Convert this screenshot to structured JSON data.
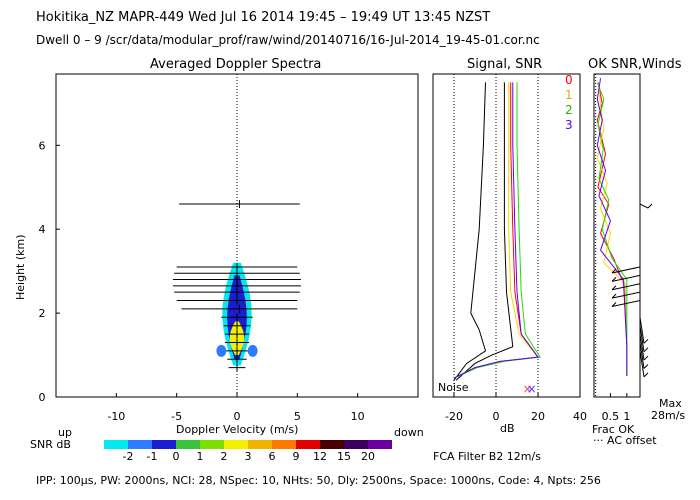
{
  "header": {
    "line1": "Hokitika_NZ  MAPR-449  Wed Jul 16 2014 19:45 – 19:49 UT 13:45 NZST",
    "line2": "Dwell  0 – 9   /scr/data/modular_prof/raw/wind/20140716/16-Jul-2014_19-45-01.cor.nc"
  },
  "panel_titles": {
    "spectra": "Averaged Doppler Spectra",
    "signal": "Signal, SNR",
    "ok": "OK SNR,Winds"
  },
  "labels": {
    "up": "up",
    "down": "down",
    "snr_db": "SNR dB",
    "noise": "Noise",
    "fca_filter": "FCA Filter B2 12m/s",
    "frac_ok": "Frac OK",
    "ac_offset": "··· AC offset",
    "max": "Max",
    "max_val": "28m/s",
    "footer": "IPP: 100µs,  PW: 2000ns,  NCI:  28,  NSpec: 10, NHts: 50,  Dly: 2500ns,  Space: 1000ns,  Code: 4,  Npts: 256"
  },
  "legend_ok": {
    "entries": [
      {
        "label": "0",
        "color": "#ff0000"
      },
      {
        "label": "1",
        "color": "#ffd400"
      },
      {
        "label": "2",
        "color": "#22dd00"
      },
      {
        "label": "3",
        "color": "#5a00ff"
      }
    ]
  },
  "colorbar": {
    "labels": [
      "-2",
      "-1",
      "0",
      "1",
      "2",
      "3",
      "6",
      "9",
      "12",
      "15",
      "20"
    ],
    "colors": [
      "#00e8f0",
      "#2f7bff",
      "#1c1cd0",
      "#3cc23c",
      "#7ee000",
      "#f0f000",
      "#f0b400",
      "#ff7a00",
      "#e00000",
      "#4a0000",
      "#3a0060",
      "#6a00a0"
    ]
  },
  "chart_data": [
    {
      "type": "heatmap",
      "title": "Averaged Doppler Spectra",
      "xlabel": "Doppler Velocity (m/s)",
      "ylabel": "Height (km)",
      "xlim": [
        -15,
        15
      ],
      "ylim": [
        0,
        7.7
      ],
      "xticks": [
        -10,
        -5,
        0,
        5,
        10
      ],
      "yticks": [
        0,
        2,
        4,
        6
      ],
      "moment_error_bars": [
        {
          "height": 0.7,
          "v": 0.0,
          "half_width": 0.7
        },
        {
          "height": 0.9,
          "v": 0.0,
          "half_width": 0.8
        },
        {
          "height": 1.1,
          "v": 0.0,
          "half_width": 0.9
        },
        {
          "height": 1.3,
          "v": 0.0,
          "half_width": 1.0
        },
        {
          "height": 1.5,
          "v": 0.0,
          "half_width": 1.0
        },
        {
          "height": 1.7,
          "v": 0.0,
          "half_width": 1.1
        },
        {
          "height": 1.9,
          "v": 0.0,
          "half_width": 1.3
        },
        {
          "height": 2.1,
          "v": 0.2,
          "half_width": 4.8
        },
        {
          "height": 2.3,
          "v": 0.0,
          "half_width": 5.0
        },
        {
          "height": 2.5,
          "v": 0.0,
          "half_width": 5.2
        },
        {
          "height": 2.65,
          "v": 0.0,
          "half_width": 5.3
        },
        {
          "height": 2.8,
          "v": 0.0,
          "half_width": 5.3
        },
        {
          "height": 2.95,
          "v": 0.0,
          "half_width": 5.2
        },
        {
          "height": 3.1,
          "v": 0.0,
          "half_width": 5.0
        },
        {
          "height": 4.6,
          "v": 0.2,
          "half_width": 5.0
        }
      ],
      "snr_contours": [
        {
          "snr": -2,
          "core_v": 0.0,
          "h0": 0.75,
          "h1": 3.2,
          "max_half_width": 0.9
        },
        {
          "snr": 0,
          "core_v": 0.0,
          "h0": 0.9,
          "h1": 2.9,
          "max_half_width": 0.6
        },
        {
          "snr": 3,
          "core_v": 0.0,
          "h0": 1.0,
          "h1": 1.8,
          "max_half_width": 0.45
        }
      ]
    },
    {
      "type": "line",
      "title": "Signal, SNR",
      "xlabel": "dB",
      "xlim": [
        -30,
        40
      ],
      "xticks": [
        -20,
        0,
        20,
        40
      ],
      "ylim": [
        0,
        7.7
      ],
      "series": [
        {
          "color": "#000000",
          "points": [
            [
              -20,
              0.4
            ],
            [
              -14,
              0.8
            ],
            [
              -5,
              1.1
            ],
            [
              -8,
              1.6
            ],
            [
              -12,
              2.0
            ],
            [
              -10,
              3.0
            ],
            [
              -8,
              4.0
            ],
            [
              -7,
              5.0
            ],
            [
              -6,
              6.0
            ],
            [
              -5,
              7.5
            ]
          ]
        },
        {
          "color": "#000000",
          "points": [
            [
              -19,
              0.4
            ],
            [
              -10,
              0.8
            ],
            [
              -2,
              1.0
            ],
            [
              8,
              1.2
            ],
            [
              5,
              2.5
            ],
            [
              4,
              4
            ],
            [
              4,
              6
            ],
            [
              4,
              7.5
            ]
          ]
        },
        {
          "color": "#ff0000",
          "points": [
            [
              -20,
              0.45
            ],
            [
              -10,
              0.7
            ],
            [
              2,
              0.85
            ],
            [
              20,
              0.95
            ],
            [
              12,
              1.5
            ],
            [
              9,
              2.5
            ],
            [
              8,
              4
            ],
            [
              7,
              6
            ],
            [
              7,
              7.5
            ]
          ]
        },
        {
          "color": "#ffd400",
          "points": [
            [
              -20,
              0.45
            ],
            [
              -10,
              0.7
            ],
            [
              3,
              0.85
            ],
            [
              20,
              0.95
            ],
            [
              11,
              1.5
            ],
            [
              7,
              2.5
            ],
            [
              6,
              4
            ],
            [
              6,
              6
            ],
            [
              6,
              7.5
            ]
          ]
        },
        {
          "color": "#22dd00",
          "points": [
            [
              -20,
              0.45
            ],
            [
              -9,
              0.7
            ],
            [
              4,
              0.85
            ],
            [
              21,
              0.95
            ],
            [
              14,
              1.5
            ],
            [
              12,
              2.5
            ],
            [
              11,
              4
            ],
            [
              10,
              6
            ],
            [
              10,
              7.5
            ]
          ]
        },
        {
          "color": "#5a00ff",
          "points": [
            [
              -20,
              0.45
            ],
            [
              -10,
              0.7
            ],
            [
              2,
              0.85
            ],
            [
              20,
              0.95
            ],
            [
              12,
              1.5
            ],
            [
              10,
              2.5
            ],
            [
              9,
              4
            ],
            [
              8,
              6
            ],
            [
              8,
              7.5
            ]
          ]
        }
      ]
    },
    {
      "type": "line",
      "title": "OK SNR,Winds",
      "xlabel": "Frac OK",
      "xlim": [
        0,
        1.4
      ],
      "xticks": [
        0.5,
        1
      ],
      "ylim": [
        0,
        7.7
      ],
      "series": [
        {
          "name": "0",
          "color": "#ff0000",
          "points": [
            [
              0.12,
              7.5
            ],
            [
              0.25,
              7.0
            ],
            [
              0.1,
              6.6
            ],
            [
              0.35,
              5.8
            ],
            [
              0.12,
              5.0
            ],
            [
              0.45,
              4.6
            ],
            [
              0.2,
              3.9
            ],
            [
              0.6,
              3.3
            ],
            [
              0.9,
              2.7
            ],
            [
              1.0,
              1.2
            ],
            [
              1.0,
              0.5
            ]
          ]
        },
        {
          "name": "1",
          "color": "#ffd400",
          "points": [
            [
              0.15,
              7.4
            ],
            [
              0.2,
              6.9
            ],
            [
              0.3,
              6.4
            ],
            [
              0.1,
              5.7
            ],
            [
              0.4,
              5.1
            ],
            [
              0.2,
              4.5
            ],
            [
              0.5,
              3.9
            ],
            [
              0.3,
              3.2
            ],
            [
              0.95,
              2.7
            ],
            [
              1.0,
              1.2
            ],
            [
              1.0,
              0.5
            ]
          ]
        },
        {
          "name": "2",
          "color": "#22dd00",
          "points": [
            [
              0.1,
              7.5
            ],
            [
              0.3,
              7.1
            ],
            [
              0.12,
              6.5
            ],
            [
              0.28,
              5.9
            ],
            [
              0.15,
              5.2
            ],
            [
              0.45,
              4.7
            ],
            [
              0.25,
              4.0
            ],
            [
              0.55,
              3.3
            ],
            [
              1.0,
              2.8
            ],
            [
              1.0,
              1.2
            ],
            [
              1.0,
              0.5
            ]
          ]
        },
        {
          "name": "3",
          "color": "#5a00ff",
          "points": [
            [
              0.2,
              7.6
            ],
            [
              0.1,
              7.1
            ],
            [
              0.25,
              6.6
            ],
            [
              0.1,
              6.0
            ],
            [
              0.35,
              5.4
            ],
            [
              0.15,
              4.8
            ],
            [
              0.5,
              4.2
            ],
            [
              0.2,
              3.5
            ],
            [
              0.9,
              2.8
            ],
            [
              1.0,
              1.2
            ],
            [
              1.0,
              0.5
            ]
          ]
        }
      ],
      "wind_barbs": [
        {
          "height": 4.6,
          "direction": "down-right"
        },
        {
          "height": 3.1,
          "direction": "left"
        },
        {
          "height": 2.9,
          "direction": "left"
        },
        {
          "height": 2.7,
          "direction": "left"
        },
        {
          "height": 2.5,
          "direction": "left"
        },
        {
          "height": 2.3,
          "direction": "left"
        },
        {
          "height": 1.9,
          "direction": "down"
        },
        {
          "height": 1.7,
          "direction": "down"
        },
        {
          "height": 1.5,
          "direction": "down"
        },
        {
          "height": 1.3,
          "direction": "down"
        },
        {
          "height": 1.1,
          "direction": "down"
        }
      ]
    }
  ]
}
